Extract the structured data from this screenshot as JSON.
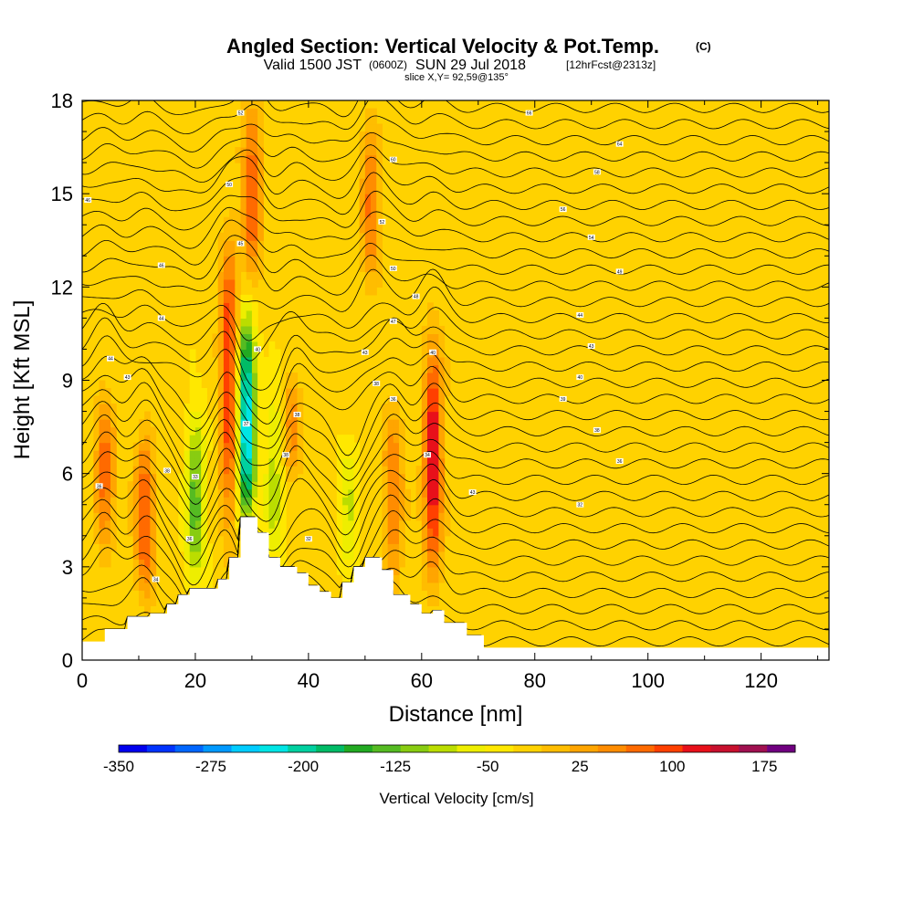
{
  "title": {
    "main": "Angled Section: Vertical Velocity & Pot.Temp.",
    "main_suffix": "(C)",
    "valid_prefix": "Valid 1500 JST",
    "valid_utc": "(0600Z)",
    "valid_date": "SUN 29 Jul 2018",
    "forecast": "[12hrFcst@2313z]",
    "slice": "slice X,Y= 92,59@135°"
  },
  "chart_data": {
    "type": "heatmap",
    "xlabel": "Distance [nm]",
    "ylabel": "Height [Kft MSL]",
    "xlim": [
      0,
      132
    ],
    "ylim": [
      0,
      18
    ],
    "x_ticks": [
      "0",
      "20",
      "40",
      "60",
      "80",
      "100",
      "120"
    ],
    "y_ticks": [
      "0",
      "3",
      "6",
      "9",
      "12",
      "15",
      "18"
    ],
    "colorbar": {
      "label": "Vertical Velocity [cm/s]",
      "tick_labels": [
        "-350",
        "-275",
        "-200",
        "-125",
        "-50",
        "25",
        "100",
        "175"
      ],
      "bounds": [
        -350,
        200
      ],
      "step": 25,
      "colors": [
        "#0000ee",
        "#0033ff",
        "#0066ff",
        "#0099ff",
        "#00ccff",
        "#00e5e5",
        "#00d0a0",
        "#00bb66",
        "#22aa22",
        "#55bb22",
        "#88cc11",
        "#bbdd00",
        "#eeee00",
        "#ffe800",
        "#ffd200",
        "#ffbd00",
        "#ffa500",
        "#ff8c00",
        "#ff6a00",
        "#ff4000",
        "#e8101a",
        "#c8102e",
        "#a01050",
        "#700080"
      ]
    },
    "background_value_cm_s": 10,
    "updrafts": [
      {
        "x": 4,
        "z_bottom": 3.5,
        "z_top": 8.5,
        "peak_cm_s": 110
      },
      {
        "x": 11,
        "z_bottom": 2.2,
        "z_top": 7.2,
        "peak_cm_s": 130
      },
      {
        "x": 26,
        "z_bottom": 4.5,
        "z_top": 13.5,
        "peak_cm_s": 150
      },
      {
        "x": 30,
        "z_bottom": 12.0,
        "z_top": 18.0,
        "peak_cm_s": 120
      },
      {
        "x": 37,
        "z_bottom": 6.0,
        "z_top": 9.0,
        "peak_cm_s": 90
      },
      {
        "x": 51,
        "z_bottom": 12.0,
        "z_top": 17.5,
        "peak_cm_s": 100
      },
      {
        "x": 55,
        "z_bottom": 2.5,
        "z_top": 8.0,
        "peak_cm_s": 100
      },
      {
        "x": 62,
        "z_bottom": 3.0,
        "z_top": 10.0,
        "peak_cm_s": 180
      }
    ],
    "downdrafts": [
      {
        "x": 29,
        "z_bottom": 4.5,
        "z_top": 11.0,
        "peak_cm_s": -230
      },
      {
        "x": 20,
        "z_bottom": 2.5,
        "z_top": 8.0,
        "peak_cm_s": -110
      },
      {
        "x": 34,
        "z_bottom": 3.0,
        "z_top": 9.0,
        "peak_cm_s": -60
      },
      {
        "x": 47,
        "z_bottom": 2.5,
        "z_top": 7.0,
        "peak_cm_s": -50
      }
    ],
    "terrain": [
      {
        "x": 0,
        "z": 0.6
      },
      {
        "x": 4,
        "z": 1.0
      },
      {
        "x": 8,
        "z": 1.4
      },
      {
        "x": 12,
        "z": 1.5
      },
      {
        "x": 15,
        "z": 1.8
      },
      {
        "x": 17,
        "z": 2.1
      },
      {
        "x": 19,
        "z": 2.3
      },
      {
        "x": 22,
        "z": 2.3
      },
      {
        "x": 24,
        "z": 2.6
      },
      {
        "x": 26,
        "z": 3.3
      },
      {
        "x": 28,
        "z": 4.6
      },
      {
        "x": 31,
        "z": 4.1
      },
      {
        "x": 33,
        "z": 3.3
      },
      {
        "x": 35,
        "z": 3.0
      },
      {
        "x": 38,
        "z": 2.8
      },
      {
        "x": 40,
        "z": 2.4
      },
      {
        "x": 42,
        "z": 2.2
      },
      {
        "x": 44,
        "z": 2.0
      },
      {
        "x": 46,
        "z": 2.5
      },
      {
        "x": 48,
        "z": 3.0
      },
      {
        "x": 50,
        "z": 3.3
      },
      {
        "x": 53,
        "z": 2.9
      },
      {
        "x": 55,
        "z": 2.1
      },
      {
        "x": 58,
        "z": 1.8
      },
      {
        "x": 60,
        "z": 1.5
      },
      {
        "x": 62,
        "z": 1.6
      },
      {
        "x": 64,
        "z": 1.2
      },
      {
        "x": 68,
        "z": 0.8
      },
      {
        "x": 71,
        "z": 0.4
      },
      {
        "x": 132,
        "z": 0.4
      }
    ],
    "contour_labels": [
      {
        "x": 28,
        "z": 17.6,
        "text": "52"
      },
      {
        "x": 79,
        "z": 17.6,
        "text": "66"
      },
      {
        "x": 95,
        "z": 16.6,
        "text": "64"
      },
      {
        "x": 55,
        "z": 16.1,
        "text": "60"
      },
      {
        "x": 91,
        "z": 15.7,
        "text": "58"
      },
      {
        "x": 26,
        "z": 15.3,
        "text": "50"
      },
      {
        "x": 1,
        "z": 14.8,
        "text": "46"
      },
      {
        "x": 85,
        "z": 14.5,
        "text": "56"
      },
      {
        "x": 53,
        "z": 14.1,
        "text": "52"
      },
      {
        "x": 90,
        "z": 13.6,
        "text": "54"
      },
      {
        "x": 28,
        "z": 13.4,
        "text": "45"
      },
      {
        "x": 55,
        "z": 12.6,
        "text": "50"
      },
      {
        "x": 95,
        "z": 12.5,
        "text": "49"
      },
      {
        "x": 14,
        "z": 12.7,
        "text": "46"
      },
      {
        "x": 59,
        "z": 11.7,
        "text": "48"
      },
      {
        "x": 88,
        "z": 11.1,
        "text": "44"
      },
      {
        "x": 14,
        "z": 11.0,
        "text": "44"
      },
      {
        "x": 55,
        "z": 10.9,
        "text": "47"
      },
      {
        "x": 90,
        "z": 10.1,
        "text": "43"
      },
      {
        "x": 5,
        "z": 9.7,
        "text": "44"
      },
      {
        "x": 31,
        "z": 10.0,
        "text": "40"
      },
      {
        "x": 50,
        "z": 9.9,
        "text": "43"
      },
      {
        "x": 62,
        "z": 9.9,
        "text": "40"
      },
      {
        "x": 8,
        "z": 9.1,
        "text": "43"
      },
      {
        "x": 88,
        "z": 9.1,
        "text": "40"
      },
      {
        "x": 52,
        "z": 8.9,
        "text": "38"
      },
      {
        "x": 85,
        "z": 8.4,
        "text": "39"
      },
      {
        "x": 55,
        "z": 8.4,
        "text": "36"
      },
      {
        "x": 38,
        "z": 7.9,
        "text": "38"
      },
      {
        "x": 29,
        "z": 7.6,
        "text": "37"
      },
      {
        "x": 91,
        "z": 7.4,
        "text": "38"
      },
      {
        "x": 36,
        "z": 6.6,
        "text": "38"
      },
      {
        "x": 61,
        "z": 6.6,
        "text": "34"
      },
      {
        "x": 95,
        "z": 6.4,
        "text": "36"
      },
      {
        "x": 15,
        "z": 6.1,
        "text": "38"
      },
      {
        "x": 20,
        "z": 5.9,
        "text": "33"
      },
      {
        "x": 3,
        "z": 5.6,
        "text": "36"
      },
      {
        "x": 69,
        "z": 5.4,
        "text": "43"
      },
      {
        "x": 88,
        "z": 5.0,
        "text": "32"
      },
      {
        "x": 19,
        "z": 3.9,
        "text": "36"
      },
      {
        "x": 40,
        "z": 3.9,
        "text": "32"
      },
      {
        "x": 13,
        "z": 2.6,
        "text": "34"
      }
    ]
  }
}
